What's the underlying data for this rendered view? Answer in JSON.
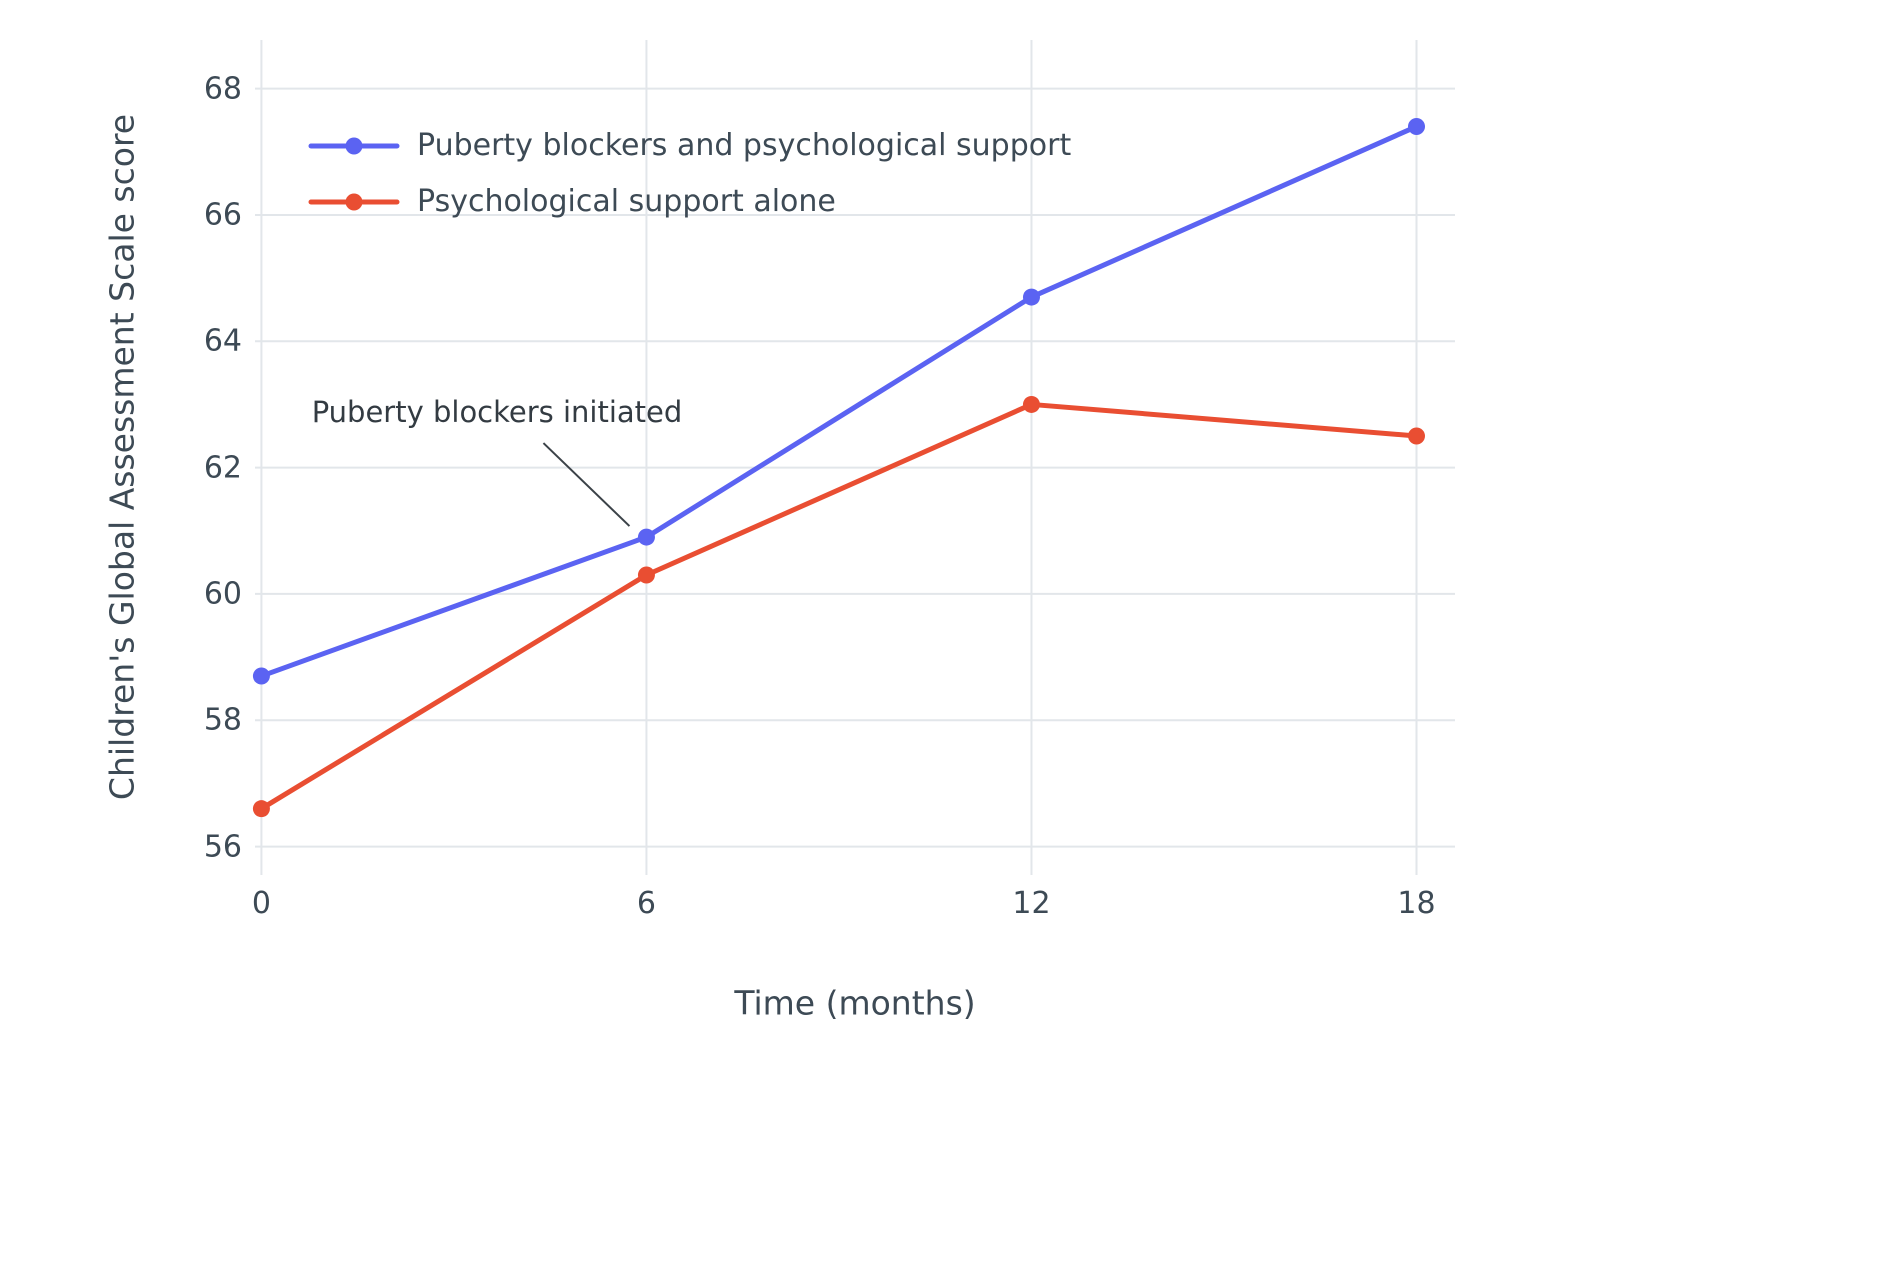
{
  "chart_data": {
    "type": "line",
    "title": "",
    "xlabel": "Time (months)",
    "ylabel": "Children's Global Assessment Scale score",
    "x": [
      0,
      6,
      12,
      18
    ],
    "xticks": [
      0,
      6,
      12,
      18
    ],
    "yticks": [
      56,
      58,
      60,
      62,
      64,
      66,
      68
    ],
    "xlim": [
      -0.1,
      18.6
    ],
    "ylim": [
      55.55,
      68.77
    ],
    "grid": true,
    "legend_position": "inside-top-left",
    "marker": "circle",
    "series": [
      {
        "name": "Puberty blockers and psychological support",
        "color": "#5b63f2",
        "values": [
          58.7,
          60.9,
          64.7,
          67.4
        ]
      },
      {
        "name": "Psychological support alone",
        "color": "#e94e32",
        "values": [
          56.6,
          60.3,
          63.0,
          62.5
        ]
      }
    ],
    "annotation": {
      "text": "Puberty blockers initiated",
      "target_series": "Puberty blockers and psychological support",
      "target_x": 6,
      "target_y": 60.9
    }
  },
  "colors": {
    "background": "#ffffff",
    "grid": "#e2e6ea",
    "text": "#3d4a55",
    "annotation_line": "#3b4248"
  }
}
